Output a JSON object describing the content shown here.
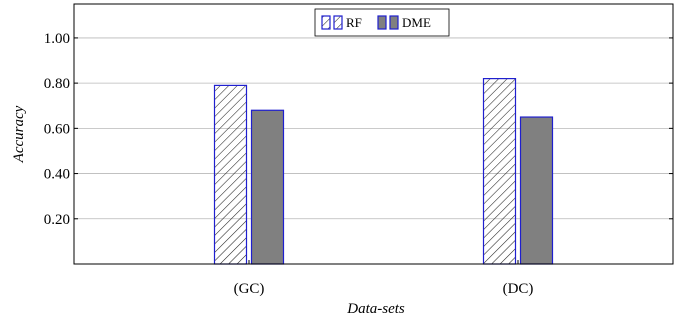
{
  "chart_data": {
    "type": "bar",
    "categories": [
      "(GC)",
      "(DC)"
    ],
    "series": [
      {
        "name": "RF",
        "values": [
          0.79,
          0.82
        ],
        "pattern": "hatched"
      },
      {
        "name": "DME",
        "values": [
          0.68,
          0.65
        ],
        "pattern": "solid"
      }
    ],
    "xlabel": "Data-sets",
    "ylabel": "Accuracy",
    "ylim": [
      0,
      1.15
    ],
    "yticks": [
      "0.20",
      "0.40",
      "0.60",
      "0.80",
      "1.00"
    ],
    "grid": "horizontal",
    "legend_position": "top-center"
  },
  "colors": {
    "bar_border": "#1f1fcf",
    "rf_hatch": "#222222",
    "dme_fill": "#808080",
    "grid": "#b8b8b8",
    "axis": "#000000"
  }
}
